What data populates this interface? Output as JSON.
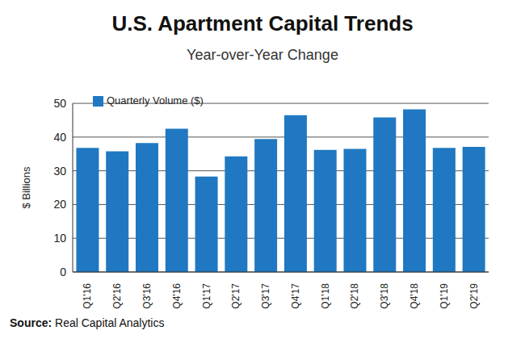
{
  "chart_data": {
    "type": "bar",
    "title": "U.S. Apartment Capital Trends",
    "subtitle": "Year-over-Year Change",
    "y_label": "$ Billions",
    "categories": [
      "Q1'16",
      "Q2'16",
      "Q3'16",
      "Q4'16",
      "Q1'17",
      "Q2'17",
      "Q3'17",
      "Q4'17",
      "Q1'18",
      "Q2'18",
      "Q3'18",
      "Q4'18",
      "Q1'19",
      "Q2'19"
    ],
    "series": [
      {
        "name": "Quarterly Volume ($)",
        "color": "#1f78c1",
        "values": [
          36.8,
          35.8,
          38.2,
          42.5,
          28.3,
          34.3,
          39.4,
          46.5,
          36.2,
          36.5,
          45.8,
          48.2,
          36.8,
          37.1
        ]
      }
    ],
    "ylim": [
      0,
      50
    ],
    "yticks": [
      0,
      10,
      20,
      30,
      40,
      50
    ],
    "grid": true,
    "legend": "upper left",
    "annotation": {
      "label": "Source:",
      "text": "Real Capital Analytics"
    }
  }
}
